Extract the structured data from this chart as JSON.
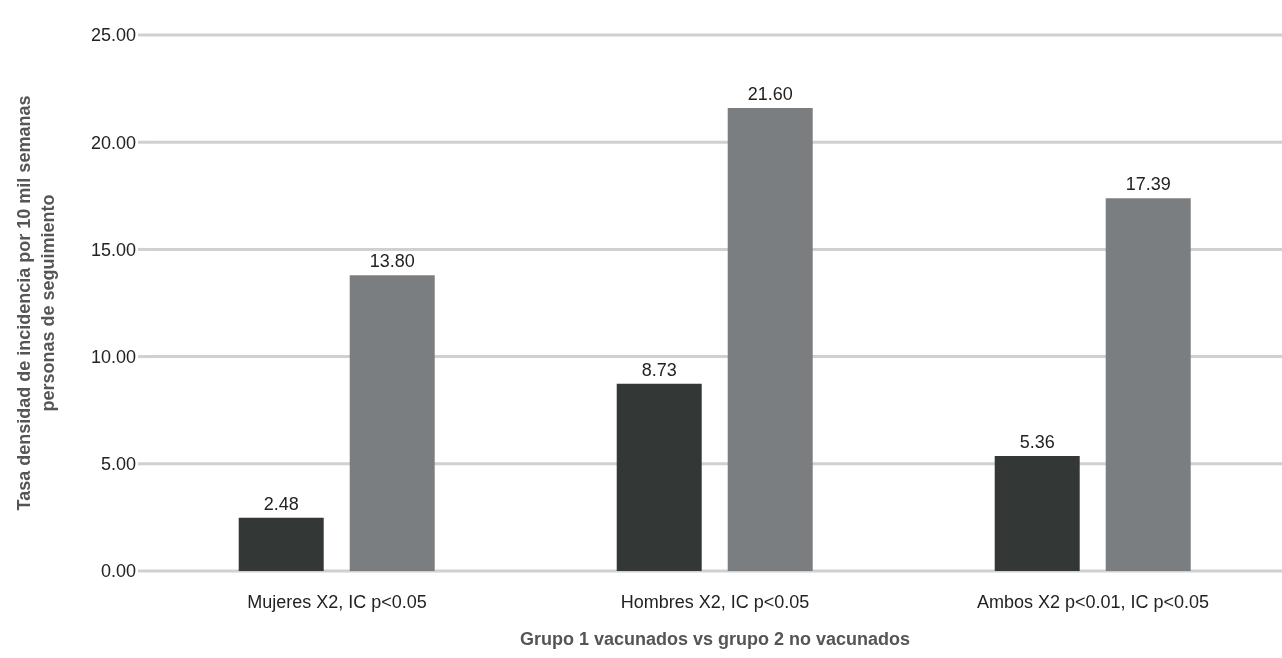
{
  "chart_data": {
    "type": "bar",
    "xlabel": "Grupo 1 vacunados vs grupo 2 no vacunados",
    "ylabel": "Tasa densidad de incidencia por 10 mil semanas personas de seguimiento",
    "categories": [
      "Mujeres X2, IC p<0.05",
      "Hombres X2, IC p<0.05",
      "Ambos X2 p<0.01, IC p<0.05"
    ],
    "series": [
      {
        "color": "#333837",
        "values": [
          2.48,
          8.73,
          5.36
        ],
        "value_labels": [
          "2.48",
          "8.73",
          "5.36"
        ]
      },
      {
        "color": "#7b7e80",
        "values": [
          13.8,
          21.6,
          17.39
        ],
        "value_labels": [
          "13.80",
          "21.60",
          "17.39"
        ]
      }
    ],
    "ylim": [
      0,
      25
    ],
    "yticks": [
      {
        "value": 0,
        "label": "0.00"
      },
      {
        "value": 5,
        "label": "5.00"
      },
      {
        "value": 10,
        "label": "10.00"
      },
      {
        "value": 15,
        "label": "15.00"
      },
      {
        "value": 20,
        "label": "20.00"
      },
      {
        "value": 25,
        "label": "25.00"
      }
    ],
    "grid": "y",
    "legend": false
  }
}
